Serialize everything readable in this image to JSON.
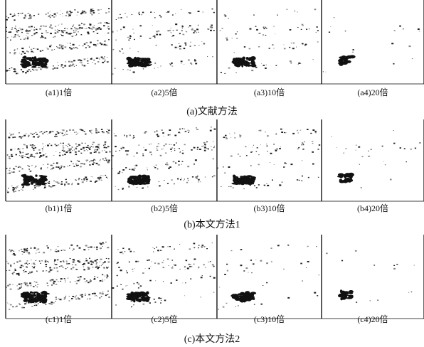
{
  "rows": [
    {
      "panels": [
        "(a1)1倍",
        "(a2)5倍",
        "(a3)10倍",
        "(a4)20倍"
      ],
      "caption": "(a)文献方法"
    },
    {
      "panels": [
        "(b1)1倍",
        "(b2)5倍",
        "(b3)10倍",
        "(b4)20倍"
      ],
      "caption": "(b)本文方法1"
    },
    {
      "panels": [
        "(c1)1倍",
        "(c2)5倍",
        "(c3)10倍",
        "(c4)20倍"
      ],
      "caption": "(c)本文方法2"
    }
  ]
}
